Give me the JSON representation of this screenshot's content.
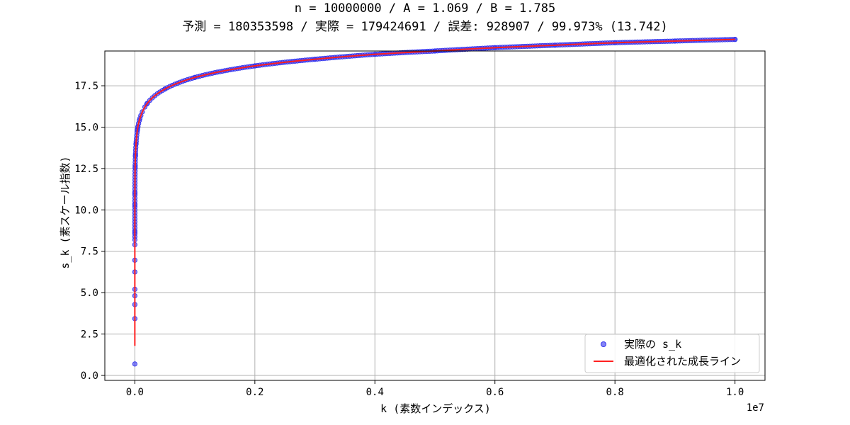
{
  "chart_data": {
    "type": "scatter",
    "title_line1": "n = 10000000 / A = 1.069 / B = 1.785",
    "title_line2": "予測 = 180353598 / 実際 = 179424691 / 誤差: 928907 / 99.973% (13.742)",
    "xlabel": "k (素数インデックス)",
    "ylabel": "s_k (素スケール指数)",
    "x_offset_label": "1e7",
    "xlim": [
      -0.05,
      1.05
    ],
    "ylim": [
      -0.3,
      19.6
    ],
    "x_ticks": [
      0.0,
      0.2,
      0.4,
      0.6,
      0.8,
      1.0
    ],
    "x_tick_labels": [
      "0.0",
      "0.2",
      "0.4",
      "0.6",
      "0.8",
      "1.0"
    ],
    "y_ticks": [
      0.0,
      2.5,
      5.0,
      7.5,
      10.0,
      12.5,
      15.0,
      17.5
    ],
    "y_tick_labels": [
      "0.0",
      "2.5",
      "5.0",
      "7.5",
      "10.0",
      "12.5",
      "15.0",
      "17.5"
    ],
    "grid": true,
    "legend_position": "lower-right",
    "params": {
      "A": 1.069,
      "B": 1.785
    },
    "series": [
      {
        "name": "実際の s_k",
        "kind": "scatter",
        "color": "#3333ee",
        "x": [
          1e-07,
          2e-07,
          3e-07,
          4e-07,
          5e-07,
          1e-06,
          2e-06,
          5e-06,
          1e-05,
          5e-05,
          0.0001,
          0.0005,
          0.001,
          0.002,
          0.005,
          0.01,
          0.02,
          0.05,
          0.1,
          0.2,
          0.3,
          0.4,
          0.5,
          0.6,
          0.7,
          0.8,
          0.9,
          1.0
        ],
        "y": [
          0.69,
          3.43,
          4.28,
          4.81,
          5.2,
          6.25,
          6.96,
          7.9,
          8.65,
          10.3,
          11.0,
          12.6,
          13.3,
          14.0,
          15.0,
          15.7,
          16.4,
          17.3,
          18.0,
          18.7,
          19.1,
          19.4,
          19.6,
          19.8,
          19.95,
          20.1,
          20.2,
          20.3
        ]
      },
      {
        "name": "最適化された成長ライン",
        "kind": "line",
        "color": "#ff2020"
      }
    ]
  }
}
